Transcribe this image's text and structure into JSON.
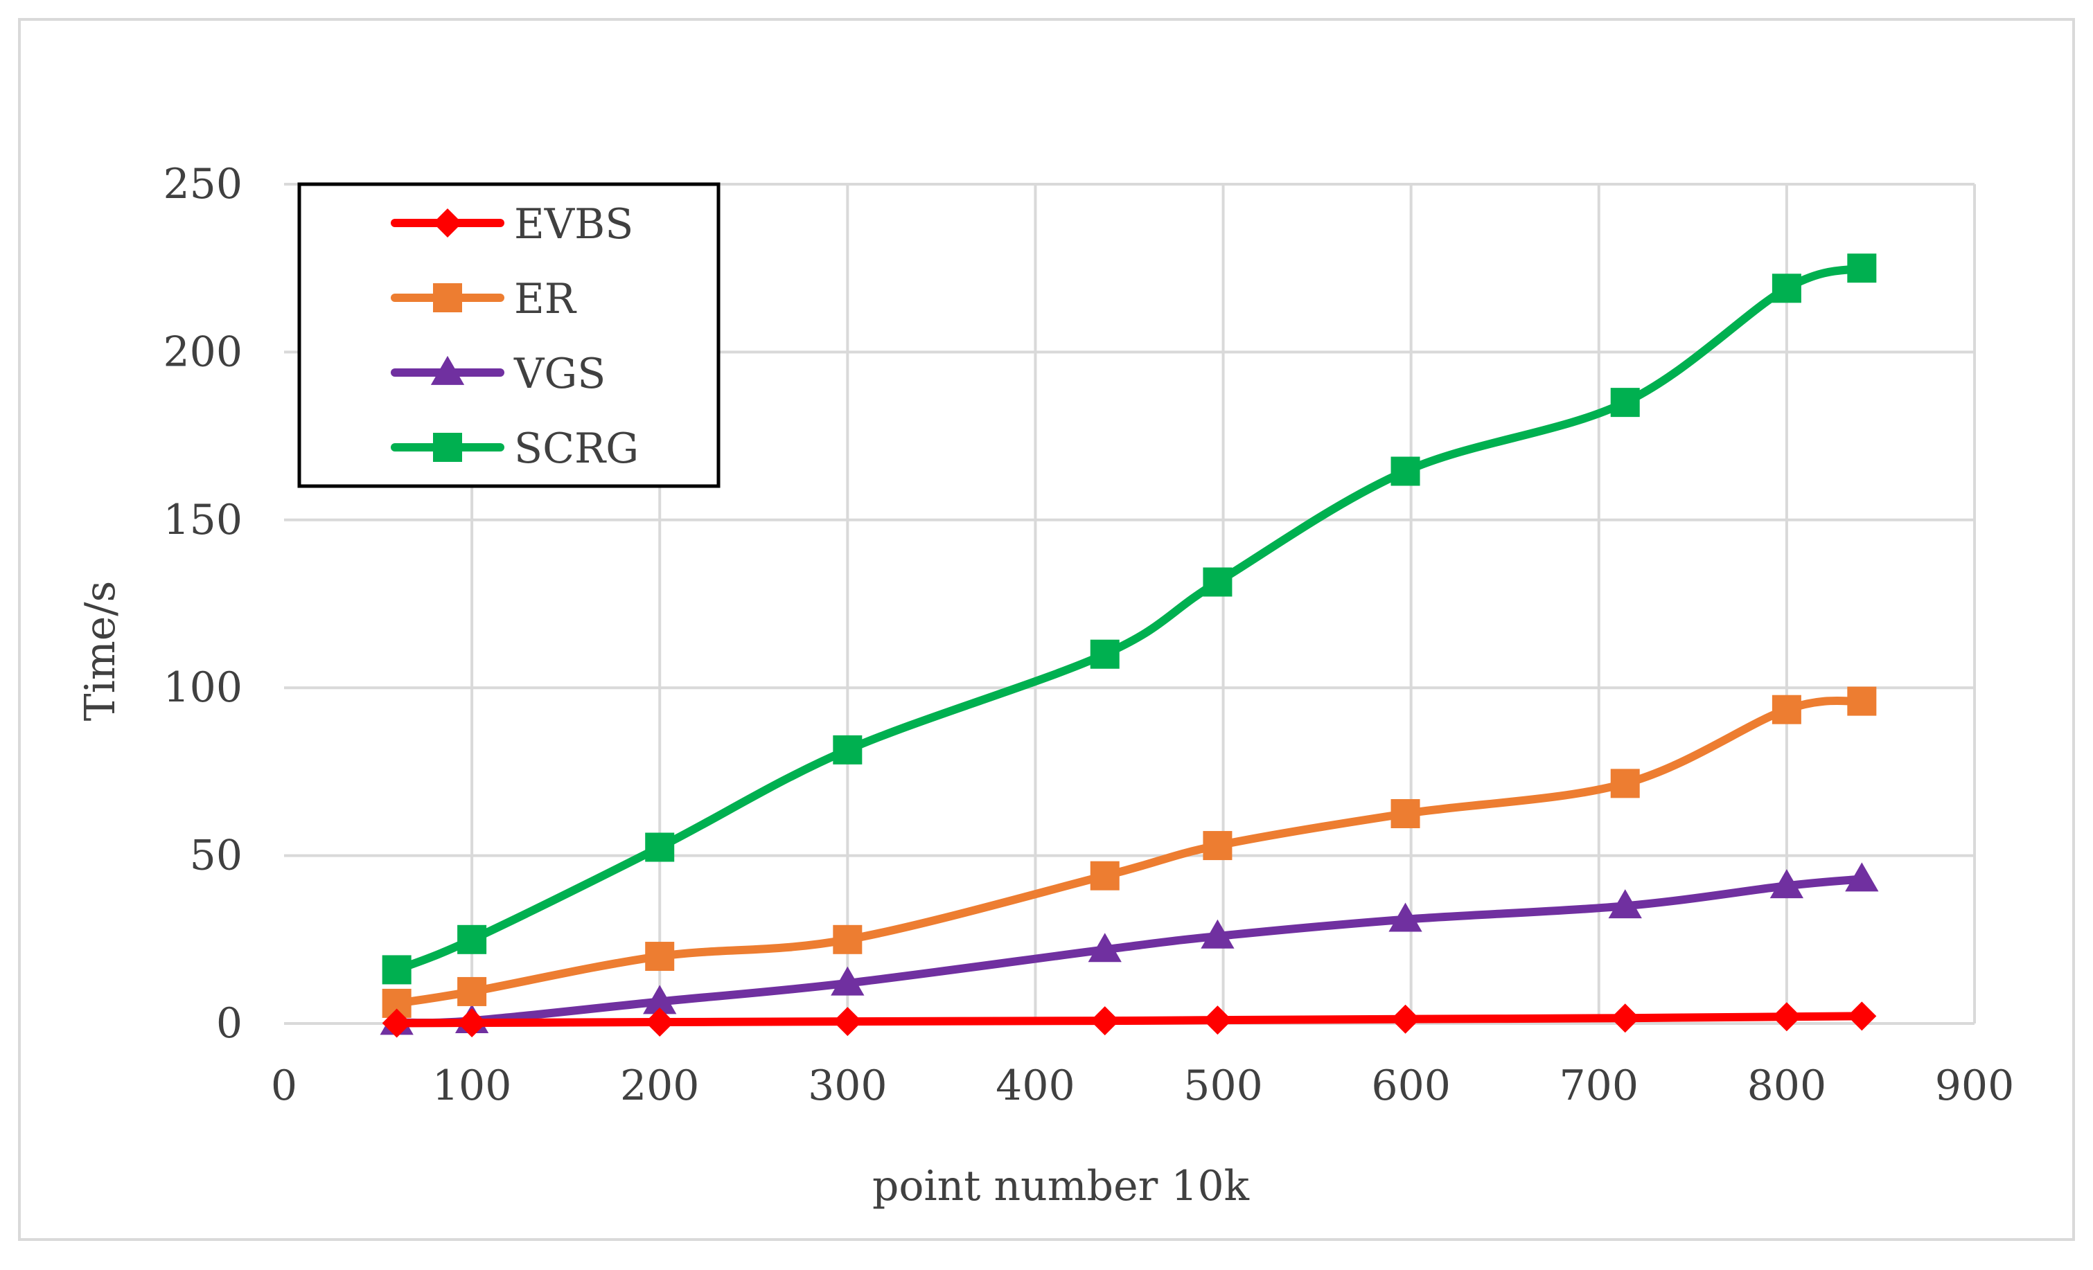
{
  "chart_data": {
    "type": "line",
    "title": "",
    "xlabel": "point number 10k",
    "ylabel": "Time/s",
    "xlim": [
      0,
      900
    ],
    "ylim": [
      0,
      250
    ],
    "x_ticks": [
      0,
      100,
      200,
      300,
      400,
      500,
      600,
      700,
      800,
      900
    ],
    "y_ticks": [
      0,
      50,
      100,
      150,
      200,
      250
    ],
    "grid": true,
    "legend_position": "top-left",
    "x": [
      60,
      100,
      200,
      300,
      437,
      497,
      597,
      714,
      800,
      840
    ],
    "series": [
      {
        "name": "EVBS",
        "marker": "diamond",
        "color": "#ff0000",
        "values": [
          0.1,
          0.2,
          0.4,
          0.6,
          0.8,
          1.0,
          1.3,
          1.6,
          2.0,
          2.2
        ]
      },
      {
        "name": "ER",
        "marker": "square",
        "color": "#ed7d31",
        "values": [
          6,
          9.5,
          20,
          25,
          44,
          53,
          62.5,
          71.5,
          93.5,
          96
        ]
      },
      {
        "name": "VGS",
        "marker": "triangle",
        "color": "#7030a0",
        "values": [
          0.3,
          0.8,
          6.5,
          12,
          22,
          26,
          31,
          35,
          41,
          43
        ]
      },
      {
        "name": "SCRG",
        "marker": "square",
        "color": "#00b050",
        "values": [
          16,
          25,
          52.5,
          81.5,
          110,
          131.5,
          164.5,
          185,
          219,
          225
        ]
      }
    ]
  }
}
